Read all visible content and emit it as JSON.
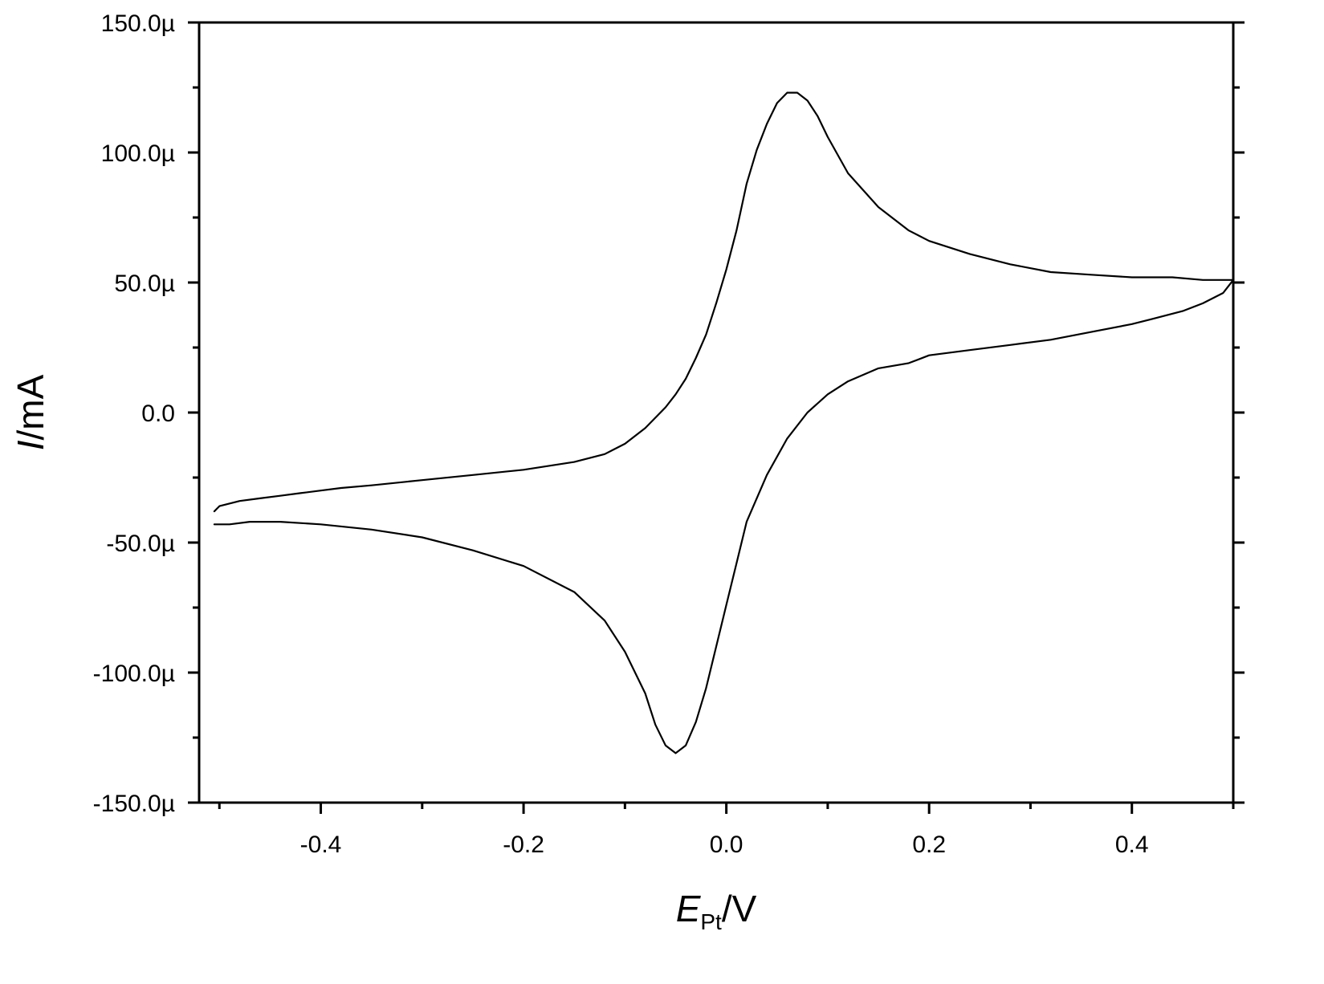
{
  "chart_data": {
    "type": "line",
    "title": "",
    "xlabel": {
      "symbol": "E",
      "subscript": "Pt",
      "unit": "/V"
    },
    "ylabel": {
      "symbol": "I",
      "unit": "/mA"
    },
    "xlim": [
      -0.52,
      0.5
    ],
    "ylim": [
      -150,
      150
    ],
    "x_ticks": [
      -0.4,
      -0.2,
      0.0,
      0.2,
      0.4
    ],
    "x_tick_labels": [
      "-0.4",
      "-0.2",
      "0.0",
      "0.2",
      "0.4"
    ],
    "y_ticks": [
      -150,
      -100,
      -50,
      0,
      50,
      100,
      150
    ],
    "y_tick_labels": [
      "-150.0µ",
      "-100.0µ",
      "-50.0µ",
      "0.0",
      "50.0µ",
      "100.0µ",
      "150.0µ"
    ],
    "x_minor_step": 0.1,
    "y_minor_step": 25,
    "grid": false,
    "legend": "none",
    "line_color": "#000000",
    "series": [
      {
        "x": [
          -0.505,
          -0.5,
          -0.48,
          -0.46,
          -0.44,
          -0.42,
          -0.4,
          -0.38,
          -0.35,
          -0.3,
          -0.25,
          -0.2,
          -0.15,
          -0.12,
          -0.1,
          -0.08,
          -0.06,
          -0.05,
          -0.04,
          -0.03,
          -0.02,
          -0.01,
          0.0,
          0.01,
          0.02,
          0.03,
          0.04,
          0.05,
          0.06,
          0.07,
          0.08,
          0.09,
          0.1,
          0.12,
          0.15,
          0.18,
          0.2,
          0.24,
          0.28,
          0.32,
          0.36,
          0.4,
          0.44,
          0.47,
          0.5,
          0.49,
          0.47,
          0.45,
          0.42,
          0.4,
          0.36,
          0.32,
          0.28,
          0.24,
          0.2,
          0.18,
          0.15,
          0.12,
          0.1,
          0.08,
          0.06,
          0.04,
          0.02,
          0.01,
          0.0,
          -0.01,
          -0.02,
          -0.03,
          -0.04,
          -0.05,
          -0.06,
          -0.07,
          -0.08,
          -0.1,
          -0.12,
          -0.15,
          -0.2,
          -0.25,
          -0.3,
          -0.35,
          -0.4,
          -0.44,
          -0.47,
          -0.49,
          -0.505
        ],
        "y": [
          -38,
          -36,
          -34,
          -33,
          -32,
          -31,
          -30,
          -29,
          -28,
          -26,
          -24,
          -22,
          -19,
          -16,
          -12,
          -6,
          2,
          7,
          13,
          21,
          30,
          42,
          55,
          70,
          88,
          101,
          111,
          119,
          123,
          123,
          120,
          114,
          106,
          92,
          79,
          70,
          66,
          61,
          57,
          54,
          53,
          52,
          52,
          51,
          51,
          46,
          42,
          39,
          36,
          34,
          31,
          28,
          26,
          24,
          22,
          19,
          17,
          12,
          7,
          0,
          -10,
          -24,
          -42,
          -58,
          -74,
          -90,
          -106,
          -119,
          -128,
          -131,
          -128,
          -120,
          -108,
          -92,
          -80,
          -69,
          -59,
          -53,
          -48,
          -45,
          -43,
          -42,
          -42,
          -43,
          -43
        ]
      }
    ]
  }
}
